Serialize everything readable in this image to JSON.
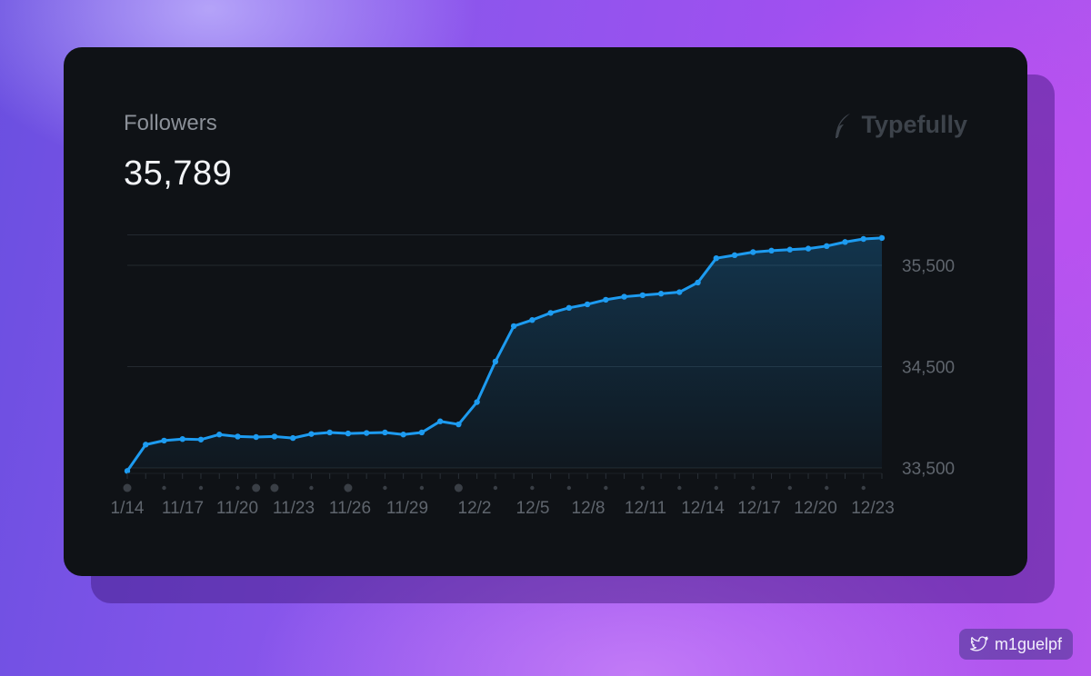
{
  "card": {
    "title": "Followers",
    "value": "35,789",
    "brand": "Typefully"
  },
  "footer": {
    "handle": "m1guelpf",
    "icon": "twitter-bird-icon"
  },
  "colors": {
    "line": "#1d9bf0",
    "card_bg": "#0f1216",
    "grid": "#23292f",
    "label": "#5f656d"
  },
  "chart_data": {
    "type": "area",
    "title": "",
    "xlabel": "",
    "ylabel": "",
    "ylim": [
      33500,
      35800
    ],
    "yticks": [
      33500,
      34500,
      35500
    ],
    "ytick_labels": [
      "33,500",
      "34,500",
      "35,500"
    ],
    "x_tick_labels": [
      "1/14",
      "11/17",
      "11/20",
      "11/23",
      "11/26",
      "11/29",
      "12/2",
      "12/5",
      "12/8",
      "12/11",
      "12/14",
      "12/17",
      "12/20",
      "12/23"
    ],
    "grid": true,
    "series": [
      {
        "values": [
          33470,
          33730,
          33770,
          33785,
          33780,
          33830,
          33810,
          33805,
          33810,
          33795,
          33835,
          33850,
          33840,
          33845,
          33850,
          33830,
          33850,
          33960,
          33930,
          34150,
          34550,
          34900,
          34960,
          35030,
          35080,
          35115,
          35160,
          35190,
          35205,
          35220,
          35235,
          35330,
          35570,
          35600,
          35630,
          35645,
          35655,
          35665,
          35690,
          35730,
          35760,
          35770
        ]
      }
    ]
  }
}
